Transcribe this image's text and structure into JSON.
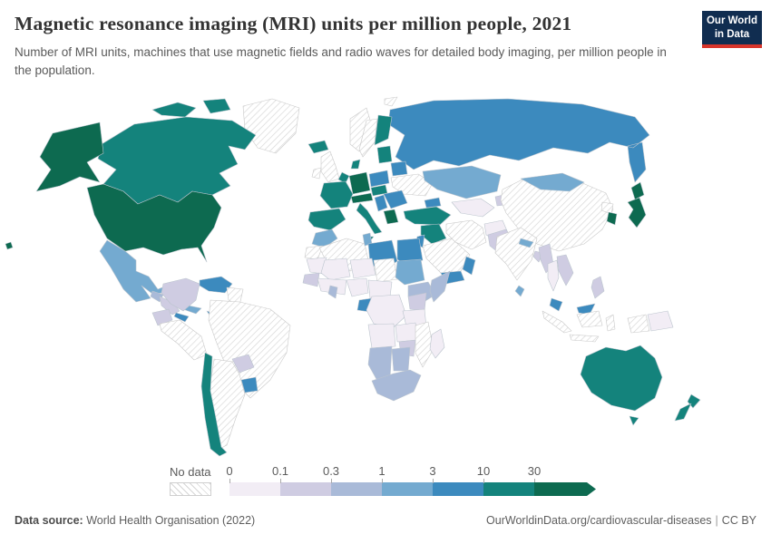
{
  "header": {
    "title": "Magnetic resonance imaging (MRI) units per million people, 2021",
    "subtitle": "Number of MRI units, machines that use magnetic fields and radio waves for detailed body imaging, per million people in the population."
  },
  "logo": {
    "line1": "Our World",
    "line2": "in Data",
    "bg_color": "#102d50",
    "accent_color": "#d8352b"
  },
  "legend": {
    "no_data_label": "No data",
    "ticks": [
      "0",
      "0.1",
      "0.3",
      "1",
      "3",
      "10",
      "30"
    ],
    "colors": [
      "#f2edf5",
      "#cfcce2",
      "#a9bad8",
      "#74aad0",
      "#3c8abe",
      "#14837c",
      "#0d6a50"
    ]
  },
  "footer": {
    "source_label": "Data source:",
    "source_text": "World Health Organisation (2022)",
    "link_text": "OurWorldinData.org/cardiovascular-diseases",
    "separator": "|",
    "license": "CC BY"
  },
  "chart_data": {
    "type": "choropleth",
    "title": "Magnetic resonance imaging (MRI) units per million people, 2021",
    "unit": "MRI units per million people",
    "year": 2021,
    "legend_position": "bottom",
    "scale": {
      "bins": [
        "0-0.1",
        "0.1-0.3",
        "0.3-1",
        "1-3",
        "3-10",
        "10-30",
        "30+"
      ],
      "colors": [
        "#f2edf5",
        "#cfcce2",
        "#a9bad8",
        "#74aad0",
        "#3c8abe",
        "#14837c",
        "#0d6a50"
      ],
      "no_data_style": "gray-diagonal-hatch"
    },
    "regions": [
      {
        "key": "usa",
        "name": "United States",
        "bin": 6
      },
      {
        "key": "alaska",
        "name": "Alaska (US)",
        "bin": 6
      },
      {
        "key": "hawaii",
        "name": "Hawaii (US)",
        "bin": 6
      },
      {
        "key": "canada",
        "name": "Canada",
        "bin": 5
      },
      {
        "key": "greenland",
        "name": "Greenland",
        "bin": null
      },
      {
        "key": "mexico",
        "name": "Mexico",
        "bin": 3
      },
      {
        "key": "guatemala",
        "name": "Guatemala",
        "bin": 2
      },
      {
        "key": "honduras-nicaragua",
        "name": "Honduras & Nicaragua",
        "bin": 1
      },
      {
        "key": "costa-rica-panama",
        "name": "Costa Rica & Panama",
        "bin": 4
      },
      {
        "key": "cuba",
        "name": "Cuba",
        "bin": 3
      },
      {
        "key": "hispaniola",
        "name": "Dominican Republic",
        "bin": 4
      },
      {
        "key": "colombia",
        "name": "Colombia",
        "bin": 1
      },
      {
        "key": "venezuela",
        "name": "Venezuela",
        "bin": 4
      },
      {
        "key": "guyanas",
        "name": "Guyana & Suriname",
        "bin": null
      },
      {
        "key": "ecuador",
        "name": "Ecuador",
        "bin": 1
      },
      {
        "key": "peru",
        "name": "Peru",
        "bin": null
      },
      {
        "key": "brazil",
        "name": "Brazil",
        "bin": null
      },
      {
        "key": "paraguay",
        "name": "Paraguay",
        "bin": 1
      },
      {
        "key": "uruguay",
        "name": "Uruguay",
        "bin": 4
      },
      {
        "key": "argentina",
        "name": "Argentina",
        "bin": null
      },
      {
        "key": "chile",
        "name": "Chile",
        "bin": 5
      },
      {
        "key": "iceland",
        "name": "Iceland",
        "bin": 5
      },
      {
        "key": "uk",
        "name": "United Kingdom",
        "bin": null
      },
      {
        "key": "ireland",
        "name": "Ireland",
        "bin": null
      },
      {
        "key": "norway",
        "name": "Norway",
        "bin": null
      },
      {
        "key": "sweden",
        "name": "Sweden",
        "bin": null
      },
      {
        "key": "finland",
        "name": "Finland",
        "bin": 5
      },
      {
        "key": "baltics",
        "name": "Baltic states",
        "bin": 5
      },
      {
        "key": "denmark",
        "name": "Denmark",
        "bin": 5
      },
      {
        "key": "germany",
        "name": "Germany",
        "bin": 6
      },
      {
        "key": "benelux",
        "name": "Belgium & Netherlands",
        "bin": 5
      },
      {
        "key": "france",
        "name": "France",
        "bin": 5
      },
      {
        "key": "iberia",
        "name": "Spain & Portugal",
        "bin": 5
      },
      {
        "key": "italy",
        "name": "Italy",
        "bin": 5
      },
      {
        "key": "switzerland-austria",
        "name": "Switzerland & Austria",
        "bin": 6
      },
      {
        "key": "poland",
        "name": "Poland",
        "bin": 4
      },
      {
        "key": "czech-hungary",
        "name": "Czechia, Slovakia & Hungary",
        "bin": 5
      },
      {
        "key": "belarus",
        "name": "Belarus",
        "bin": 4
      },
      {
        "key": "ukraine",
        "name": "Ukraine",
        "bin": null
      },
      {
        "key": "romania-bulgaria",
        "name": "Romania & Bulgaria",
        "bin": 4
      },
      {
        "key": "balkans",
        "name": "Western Balkans",
        "bin": 4
      },
      {
        "key": "greece",
        "name": "Greece",
        "bin": 6
      },
      {
        "key": "russia",
        "name": "Russia",
        "bin": 4
      },
      {
        "key": "turkey",
        "name": "Turkey",
        "bin": 5
      },
      {
        "key": "caucasus",
        "name": "Caucasus",
        "bin": 4
      },
      {
        "key": "syria-iraq",
        "name": "Syria & Iraq",
        "bin": 5
      },
      {
        "key": "israel-jordan",
        "name": "Israel & Jordan",
        "bin": 4
      },
      {
        "key": "saudi-arabia",
        "name": "Saudi Arabia",
        "bin": null
      },
      {
        "key": "yemen",
        "name": "Yemen",
        "bin": 4
      },
      {
        "key": "oman",
        "name": "Oman",
        "bin": 4
      },
      {
        "key": "iran",
        "name": "Iran",
        "bin": null
      },
      {
        "key": "afghanistan",
        "name": "Afghanistan",
        "bin": 0
      },
      {
        "key": "central-asia",
        "name": "Turkmenistan & Uzbekistan",
        "bin": 0
      },
      {
        "key": "kazakhstan",
        "name": "Kazakhstan",
        "bin": 3
      },
      {
        "key": "kyrgyz-tajik",
        "name": "Kyrgyzstan & Tajikistan",
        "bin": 1
      },
      {
        "key": "pakistan",
        "name": "Pakistan",
        "bin": 1
      },
      {
        "key": "india",
        "name": "India",
        "bin": null
      },
      {
        "key": "nepal",
        "name": "Nepal",
        "bin": 3
      },
      {
        "key": "bangladesh",
        "name": "Bangladesh",
        "bin": 1
      },
      {
        "key": "sri-lanka",
        "name": "Sri Lanka",
        "bin": 3
      },
      {
        "key": "china",
        "name": "China",
        "bin": null
      },
      {
        "key": "mongolia",
        "name": "Mongolia",
        "bin": 3
      },
      {
        "key": "north-korea",
        "name": "North Korea",
        "bin": null
      },
      {
        "key": "south-korea",
        "name": "South Korea",
        "bin": 6
      },
      {
        "key": "japan",
        "name": "Japan",
        "bin": 6
      },
      {
        "key": "myanmar",
        "name": "Myanmar",
        "bin": 1
      },
      {
        "key": "thailand",
        "name": "Thailand",
        "bin": 0
      },
      {
        "key": "vietnam-laos",
        "name": "Vietnam & Laos",
        "bin": 1
      },
      {
        "key": "malaysia",
        "name": "Malaysia",
        "bin": 4
      },
      {
        "key": "borneo-malaysia",
        "name": "Malaysia (Borneo)",
        "bin": 4
      },
      {
        "key": "indonesia",
        "name": "Indonesia",
        "bin": null
      },
      {
        "key": "philippines",
        "name": "Philippines",
        "bin": 1
      },
      {
        "key": "png",
        "name": "Papua New Guinea",
        "bin": 0
      },
      {
        "key": "west-new-guinea",
        "name": "Western New Guinea (Indonesia)",
        "bin": null
      },
      {
        "key": "australia",
        "name": "Australia",
        "bin": 5
      },
      {
        "key": "tasmania",
        "name": "Tasmania (Australia)",
        "bin": 5
      },
      {
        "key": "new-zealand",
        "name": "New Zealand",
        "bin": 5
      },
      {
        "key": "morocco",
        "name": "Morocco",
        "bin": 3
      },
      {
        "key": "western-sahara",
        "name": "Western Sahara",
        "bin": null
      },
      {
        "key": "algeria",
        "name": "Algeria",
        "bin": null
      },
      {
        "key": "tunisia",
        "name": "Tunisia",
        "bin": 3
      },
      {
        "key": "libya",
        "name": "Libya",
        "bin": 4
      },
      {
        "key": "egypt",
        "name": "Egypt",
        "bin": 4
      },
      {
        "key": "mauritania",
        "name": "Mauritania",
        "bin": 0
      },
      {
        "key": "mali",
        "name": "Mali",
        "bin": 0
      },
      {
        "key": "niger",
        "name": "Niger",
        "bin": 0
      },
      {
        "key": "chad",
        "name": "Chad",
        "bin": null
      },
      {
        "key": "sudan",
        "name": "Sudan",
        "bin": 3
      },
      {
        "key": "ethiopia",
        "name": "Ethiopia",
        "bin": 2
      },
      {
        "key": "somalia",
        "name": "Somalia",
        "bin": 2
      },
      {
        "key": "senegal-guinea",
        "name": "Senegal & Guinea",
        "bin": 1
      },
      {
        "key": "west-africa-coast",
        "name": "West African coast",
        "bin": 0
      },
      {
        "key": "ghana",
        "name": "Ghana",
        "bin": 2
      },
      {
        "key": "nigeria",
        "name": "Nigeria",
        "bin": 0
      },
      {
        "key": "cameroon-car",
        "name": "Cameroon & Central African Rep.",
        "bin": 0
      },
      {
        "key": "gabon",
        "name": "Gabon",
        "bin": 4
      },
      {
        "key": "drc",
        "name": "DR Congo",
        "bin": 0
      },
      {
        "key": "kenya-uganda",
        "name": "Kenya & Uganda",
        "bin": 1
      },
      {
        "key": "tanzania",
        "name": "Tanzania",
        "bin": 0
      },
      {
        "key": "angola",
        "name": "Angola",
        "bin": 0
      },
      {
        "key": "zambia",
        "name": "Zambia",
        "bin": 0
      },
      {
        "key": "mozambique",
        "name": "Mozambique",
        "bin": null
      },
      {
        "key": "zimbabwe",
        "name": "Zimbabwe",
        "bin": 1
      },
      {
        "key": "namibia",
        "name": "Namibia",
        "bin": 2
      },
      {
        "key": "botswana",
        "name": "Botswana",
        "bin": 2
      },
      {
        "key": "south-africa",
        "name": "South Africa",
        "bin": 2
      },
      {
        "key": "madagascar",
        "name": "Madagascar",
        "bin": 0
      },
      {
        "key": "svalbard",
        "name": "Svalbard",
        "bin": null
      }
    ]
  }
}
